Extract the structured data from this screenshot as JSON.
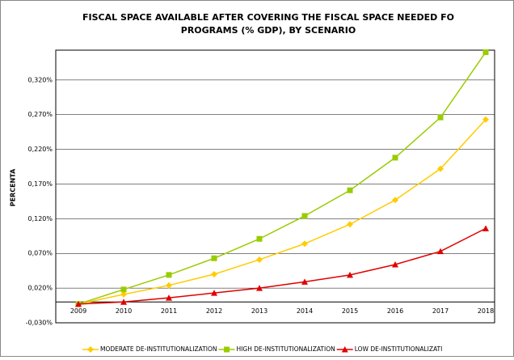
{
  "chart_data": {
    "type": "line",
    "title": [
      "FISCAL SPACE AVAILABLE AFTER COVERING THE FISCAL SPACE NEEDED FO",
      "PROGRAMS (% GDP), BY SCENARIO"
    ],
    "y_label": "PERCENTA",
    "categories": [
      "2009",
      "2010",
      "2011",
      "2012",
      "2013",
      "2014",
      "2015",
      "2016",
      "2017",
      "2018"
    ],
    "series": [
      {
        "name": "MODERATE DE-INSTITUTIONALIZATION",
        "color": "#ffcc00",
        "marker": "diamond",
        "values": [
          -0.003,
          0.011,
          0.024,
          0.04,
          0.061,
          0.084,
          0.112,
          0.147,
          0.192,
          0.263
        ]
      },
      {
        "name": "HIGH DE-INSTITUTIONALIZATION",
        "color": "#99cc00",
        "marker": "square",
        "values": [
          -0.003,
          0.018,
          0.039,
          0.063,
          0.091,
          0.124,
          0.161,
          0.208,
          0.266,
          0.36
        ]
      },
      {
        "name": "LOW DE-INSTITUTIONALIZATI",
        "color": "#e00000",
        "marker": "triangle",
        "values": [
          -0.003,
          0.0,
          0.006,
          0.013,
          0.02,
          0.029,
          0.039,
          0.054,
          0.073,
          0.106
        ]
      }
    ],
    "ylim": [
      -0.03,
      0.363
    ],
    "yticks": [
      {
        "value": -0.03,
        "label": "-0,030%"
      },
      {
        "value": 0.02,
        "label": "0,020%"
      },
      {
        "value": 0.07,
        "label": "0,070%"
      },
      {
        "value": 0.12,
        "label": "0,120%"
      },
      {
        "value": 0.17,
        "label": "0,170%"
      },
      {
        "value": 0.22,
        "label": "0,220%"
      },
      {
        "value": 0.27,
        "label": "0,270%"
      },
      {
        "value": 0.32,
        "label": "0,320%"
      }
    ],
    "grid": true,
    "legend": "bottom"
  }
}
